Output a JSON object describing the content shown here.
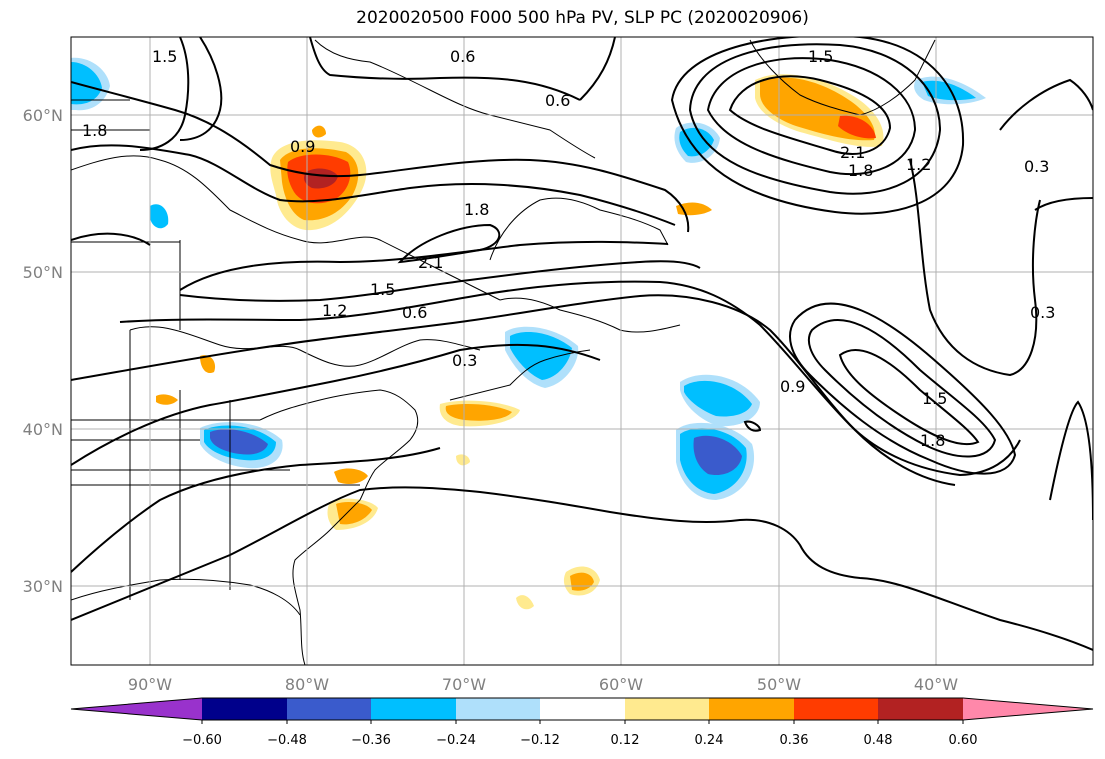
{
  "title": "2020020500 F000 500 hPa PV, SLP PC (2020020906)",
  "map": {
    "lon_range": [
      -95,
      -30
    ],
    "lat_range": [
      25,
      65
    ],
    "lon_ticks": [
      "90°W",
      "80°W",
      "70°W",
      "60°W",
      "50°W",
      "40°W"
    ],
    "lat_ticks": [
      "60°N",
      "50°N",
      "40°N",
      "30°N"
    ],
    "grid": true
  },
  "contour_labels": [
    "0.6",
    "0.6",
    "0.9",
    "1.8",
    "1.8",
    "2.1",
    "1.5",
    "1.2",
    "0.6",
    "0.3",
    "1.5",
    "2.1",
    "1.8",
    "1.2",
    "0.3",
    "0.3",
    "0.9",
    "1.5",
    "1.8",
    "1.5"
  ],
  "colorbar": {
    "ticks": [
      "−0.60",
      "−0.48",
      "−0.36",
      "−0.24",
      "−0.12",
      "0.12",
      "0.24",
      "0.36",
      "0.48",
      "0.60"
    ],
    "colors": [
      "#9932cc",
      "#00008b",
      "#3a5bcc",
      "#00bfff",
      "#afe0fb",
      "#ffffff",
      "#ffea8f",
      "#ffa500",
      "#ff3c00",
      "#b22222",
      "#ff88aa"
    ]
  }
}
